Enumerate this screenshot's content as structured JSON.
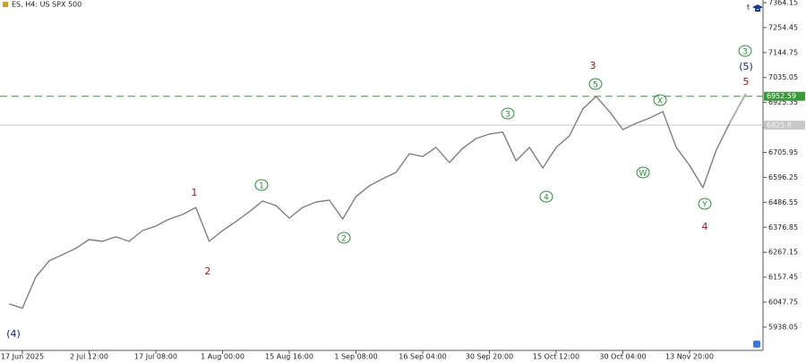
{
  "chart_data": {
    "type": "line",
    "title": "ES, H4:  US SPX 500",
    "color": "#7f7f7f",
    "categories": [
      null,
      "17 Jun 2025",
      null,
      null,
      null,
      null,
      "2 Jul 12:00",
      null,
      null,
      null,
      null,
      "17 Jul 08:00",
      null,
      null,
      null,
      null,
      "1 Aug 00:00",
      null,
      null,
      null,
      null,
      "15 Aug 16:00",
      null,
      null,
      null,
      null,
      "1 Sep 08:00",
      null,
      null,
      null,
      null,
      "16 Sep 04:00",
      null,
      null,
      null,
      null,
      "30 Sep 20:00",
      null,
      null,
      null,
      null,
      "15 Oct 12:00",
      null,
      null,
      null,
      null,
      "30 Oct 04:00",
      null,
      null,
      null,
      null,
      "13 Nov 20:00",
      null,
      null,
      null
    ],
    "values": [
      6040,
      6021,
      6158,
      6229,
      6256,
      6284,
      6323,
      6315,
      6335,
      6315,
      6362,
      6382,
      6413,
      6433,
      6464,
      6315,
      6362,
      6402,
      6445,
      6492,
      6472,
      6417,
      6464,
      6488,
      6496,
      6413,
      6512,
      6559,
      6590,
      6618,
      6700,
      6688,
      6728,
      6661,
      6724,
      6767,
      6787,
      6795,
      6669,
      6728,
      6637,
      6728,
      6779,
      6897,
      6952,
      6885,
      6806,
      6834,
      6857,
      6885,
      6728,
      6649,
      6551,
      6716,
      6834
    ],
    "ylim": [
      5835.6,
      7375.9
    ],
    "yticks": [
      5938.05,
      6047.75,
      6157.45,
      6267.15,
      6376.85,
      6486.55,
      6596.25,
      6705.95,
      6815.65,
      6925.35,
      7035.05,
      7144.75,
      7254.45,
      7364.15
    ],
    "levels": [
      {
        "price": 6952.59,
        "color": "#3a9a3a",
        "dashed": true
      },
      {
        "price": 6825.8,
        "color": "#c8c8c8",
        "dashed": false
      }
    ],
    "annotations": [
      {
        "text": "(4)",
        "color": "#1a237e",
        "circled": false
      },
      {
        "text": "1",
        "color": "#8b1a1a",
        "circled": false
      },
      {
        "text": "2",
        "color": "#8b1a1a",
        "circled": false
      },
      {
        "text": "1",
        "color": "#2e8b3a",
        "circled": true
      },
      {
        "text": "2",
        "color": "#2e8b3a",
        "circled": true
      },
      {
        "text": "3",
        "color": "#2e8b3a",
        "circled": true
      },
      {
        "text": "4",
        "color": "#2e8b3a",
        "circled": true
      },
      {
        "text": "3",
        "color": "#8b1a1a",
        "circled": false
      },
      {
        "text": "5",
        "color": "#2e8b3a",
        "circled": true
      },
      {
        "text": "W",
        "color": "#2e8b3a",
        "circled": true
      },
      {
        "text": "X",
        "color": "#2e8b3a",
        "circled": true
      },
      {
        "text": "Y",
        "color": "#2e8b3a",
        "circled": true
      },
      {
        "text": "4",
        "color": "#8b1a1a",
        "circled": false
      },
      {
        "text": "3",
        "color": "#2e8b3a",
        "circled": true
      },
      {
        "text": "(5)",
        "color": "#1a237e",
        "circled": false
      },
      {
        "text": "5",
        "color": "#8b1a1a",
        "circled": false
      }
    ]
  }
}
